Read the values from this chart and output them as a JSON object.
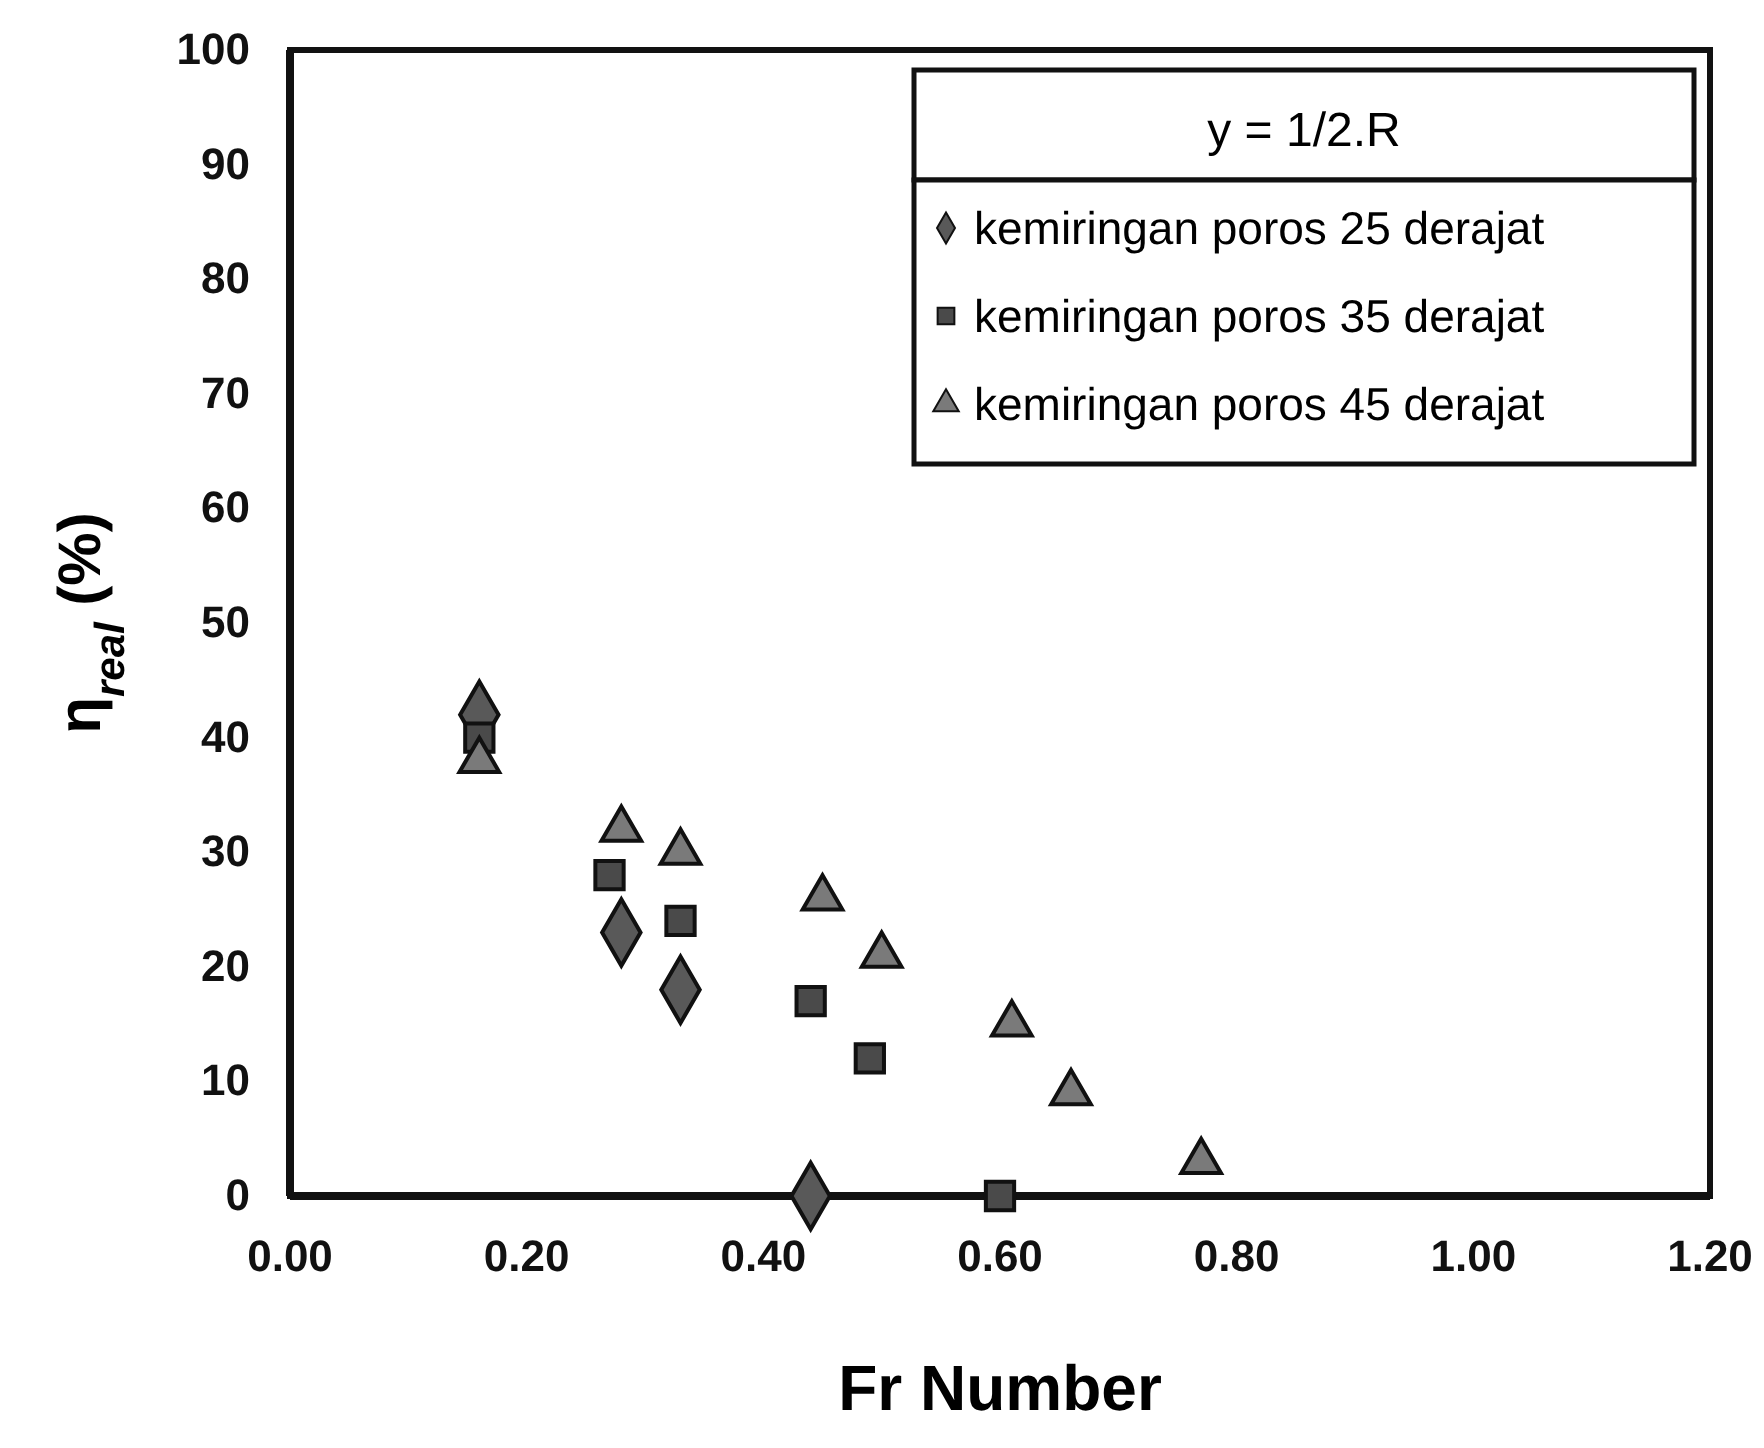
{
  "chart_data": {
    "type": "scatter",
    "xlabel": "Fr Number",
    "ylabel": "η$_{real}$ (%)",
    "legend_title": "y = 1/2.R",
    "legend": "top right",
    "grid": false,
    "xlim": [
      0,
      1.2
    ],
    "xticks": [
      {
        "value": 0,
        "label": "0.00"
      },
      {
        "value": 0.2,
        "label": "0.20"
      },
      {
        "value": 0.4,
        "label": "0.40"
      },
      {
        "value": 0.6,
        "label": "0.60"
      },
      {
        "value": 0.8,
        "label": "0.80"
      },
      {
        "value": 1,
        "label": "1.00"
      },
      {
        "value": 1.2,
        "label": "1.20"
      }
    ],
    "ylim": [
      0,
      100
    ],
    "yticks": [
      0,
      10,
      20,
      30,
      40,
      50,
      60,
      70,
      80,
      90,
      100
    ],
    "series": [
      {
        "name": "kemiringan poros 25 derajat",
        "color": "#595959",
        "marker": "diamond",
        "x": [
          0.16,
          0.28,
          0.33,
          0.44
        ],
        "values": [
          42,
          23,
          18,
          0
        ]
      },
      {
        "name": "kemiringan poros 35 derajat",
        "color": "#4a4a4a",
        "marker": "square",
        "x": [
          0.16,
          0.27,
          0.33,
          0.44,
          0.49,
          0.6
        ],
        "values": [
          40,
          28,
          24,
          17,
          12,
          0
        ]
      },
      {
        "name": "kemiringan poros 45 derajat",
        "color": "#7a7a7a",
        "marker": "triangle",
        "x": [
          0.16,
          0.28,
          0.33,
          0.45,
          0.5,
          0.61,
          0.66,
          0.77
        ],
        "values": [
          38,
          32,
          30,
          26,
          21,
          15,
          9,
          3
        ]
      }
    ]
  }
}
